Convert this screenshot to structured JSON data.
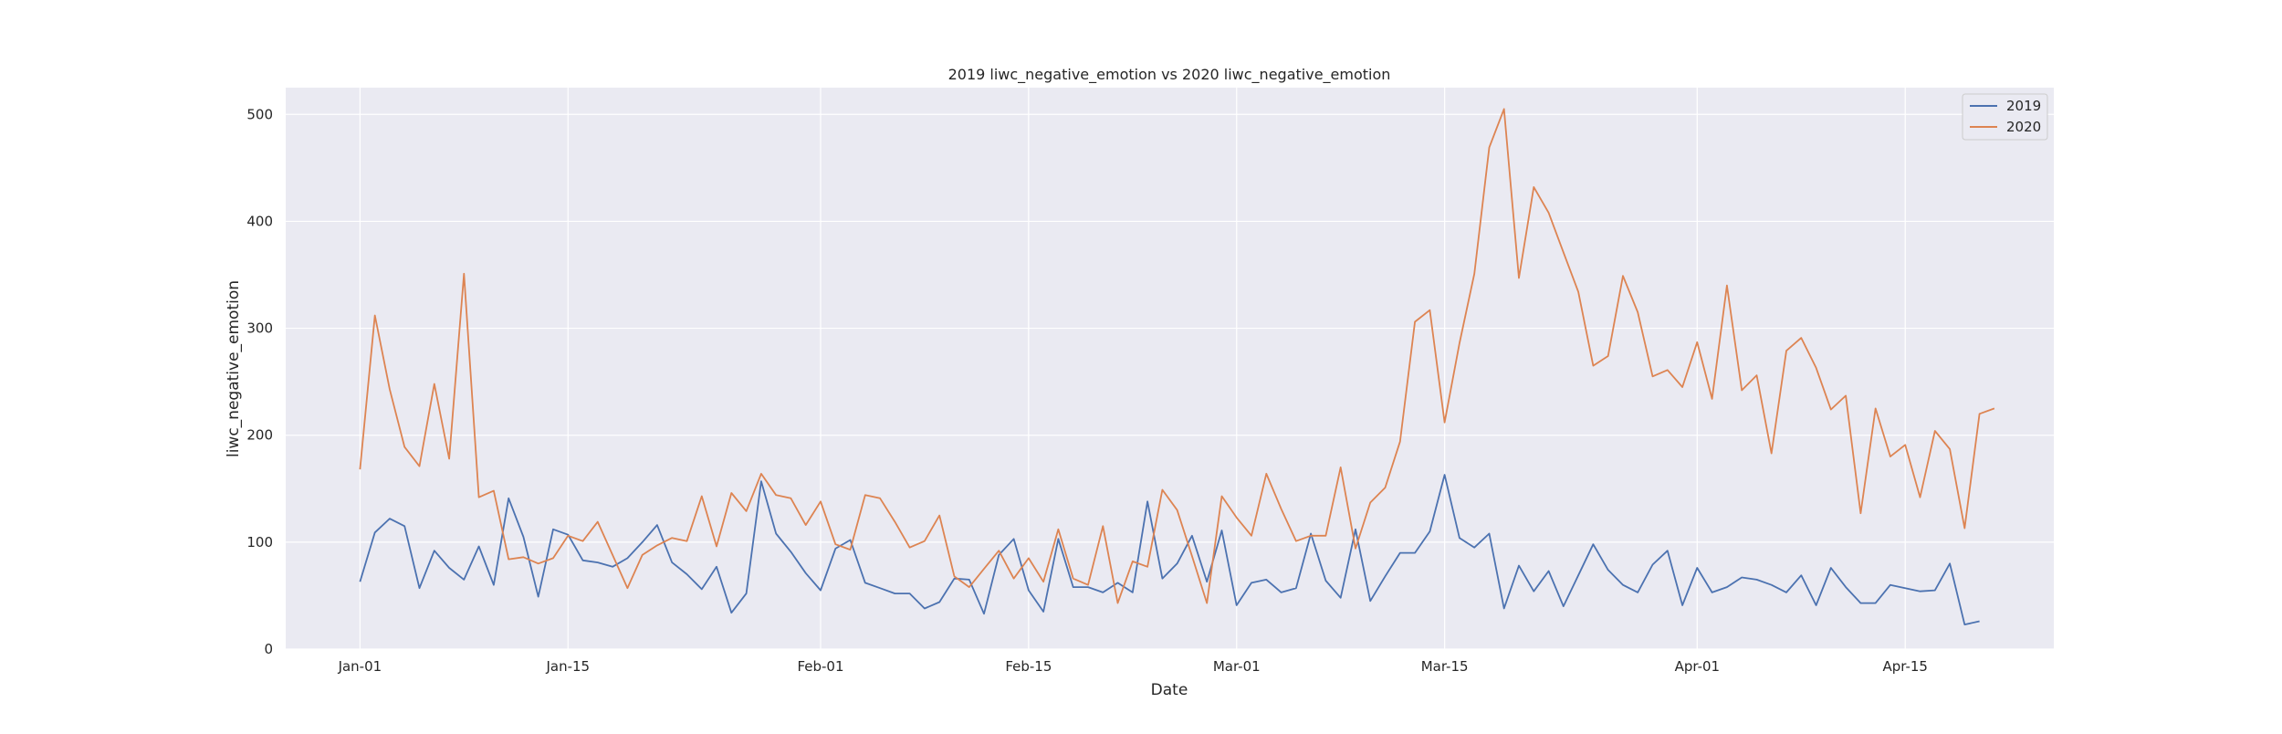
{
  "chart_data": {
    "type": "line",
    "title": "2019 liwc_negative_emotion vs 2020 liwc_negative_emotion",
    "xlabel": "Date",
    "ylabel": "liwc_negative_emotion",
    "x_start": "Jan-01",
    "x_ticks": [
      {
        "day": 0,
        "label": "Jan-01"
      },
      {
        "day": 14,
        "label": "Jan-15"
      },
      {
        "day": 31,
        "label": "Feb-01"
      },
      {
        "day": 45,
        "label": "Feb-15"
      },
      {
        "day": 59,
        "label": "Mar-01"
      },
      {
        "day": 73,
        "label": "Mar-15"
      },
      {
        "day": 90,
        "label": "Apr-01"
      },
      {
        "day": 104,
        "label": "Apr-15"
      }
    ],
    "y_ticks": [
      0,
      100,
      200,
      300,
      400,
      500
    ],
    "xlim": [
      -5,
      114
    ],
    "ylim": [
      0,
      525
    ],
    "grid": true,
    "legend_position": "top-right",
    "colors": {
      "background": "#eaeaf2",
      "grid": "#ffffff",
      "2019": "#4c72b0",
      "2020": "#dd8452"
    },
    "series": [
      {
        "name": "2019",
        "color": "#4c72b0",
        "values": [
          63,
          109,
          122,
          115,
          57,
          92,
          76,
          65,
          96,
          60,
          141,
          105,
          49,
          112,
          107,
          83,
          81,
          77,
          85,
          100,
          116,
          81,
          70,
          56,
          77,
          34,
          52,
          157,
          108,
          91,
          71,
          55,
          94,
          102,
          62,
          57,
          52,
          52,
          38,
          44,
          66,
          65,
          33,
          88,
          103,
          55,
          35,
          103,
          58,
          58,
          53,
          62,
          53,
          138,
          66,
          80,
          106,
          63,
          111,
          41,
          62,
          65,
          53,
          57,
          108,
          64,
          48,
          112,
          45,
          68,
          90,
          90,
          110,
          163,
          104,
          95,
          108,
          38,
          78,
          54,
          73,
          40,
          69,
          98,
          74,
          60,
          53,
          79,
          92,
          41,
          76,
          53,
          58,
          67,
          65,
          60,
          53,
          69,
          41,
          76,
          58,
          43,
          43,
          60,
          57,
          54,
          55,
          80,
          23,
          26
        ]
      },
      {
        "name": "2020",
        "color": "#dd8452",
        "values": [
          168,
          312,
          243,
          189,
          171,
          248,
          178,
          351,
          142,
          148,
          84,
          86,
          80,
          85,
          106,
          101,
          119,
          88,
          57,
          88,
          97,
          104,
          101,
          143,
          96,
          146,
          129,
          164,
          144,
          141,
          116,
          138,
          98,
          93,
          144,
          141,
          119,
          95,
          101,
          125,
          68,
          58,
          75,
          92,
          66,
          85,
          63,
          112,
          66,
          60,
          115,
          43,
          82,
          77,
          149,
          130,
          87,
          43,
          143,
          123,
          106,
          164,
          131,
          101,
          106,
          106,
          170,
          94,
          137,
          151,
          194,
          306,
          317,
          212,
          286,
          351,
          469,
          505,
          347,
          432,
          408,
          371,
          334,
          265,
          274,
          349,
          315,
          255,
          261,
          245,
          287,
          234,
          340,
          242,
          256,
          183,
          279,
          291,
          263,
          224,
          237,
          127,
          225,
          180,
          191,
          142,
          204,
          187,
          113,
          220,
          225
        ]
      }
    ]
  }
}
